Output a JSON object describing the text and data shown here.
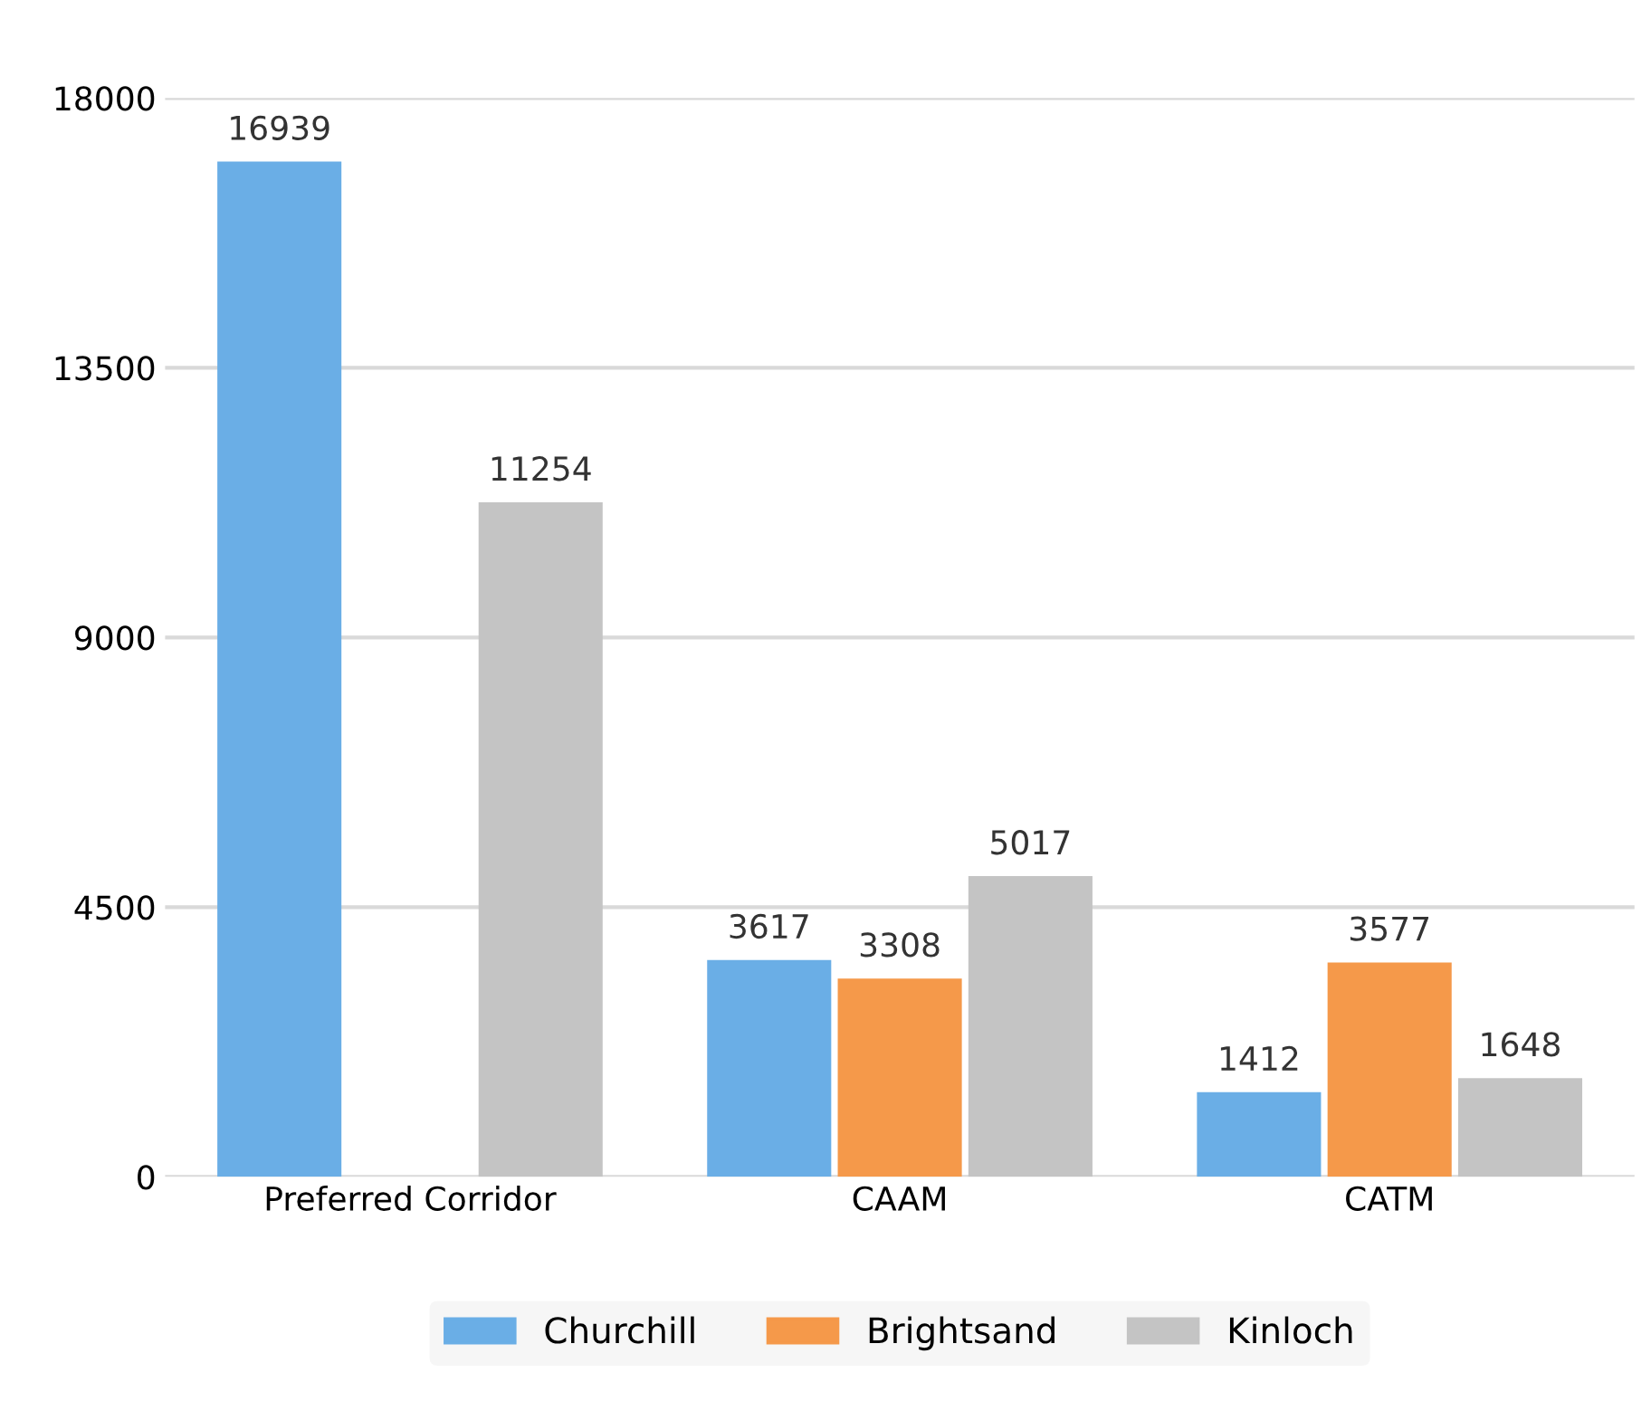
{
  "chart_data": {
    "type": "bar",
    "categories": [
      "Preferred Corridor",
      "CAAM",
      "CATM"
    ],
    "series": [
      {
        "name": "Churchill",
        "color": "#6aaee6",
        "values": [
          16939,
          3617,
          1412
        ]
      },
      {
        "name": "Brightsand",
        "color": "#f5994a",
        "values": [
          null,
          3308,
          3577
        ]
      },
      {
        "name": "Kinloch",
        "color": "#c4c4c4",
        "values": [
          11254,
          5017,
          1648
        ]
      }
    ],
    "ylim": [
      0,
      18000
    ],
    "yticks": [
      0,
      4500,
      9000,
      13500,
      18000
    ],
    "grid": "y",
    "legend": "bottom",
    "data_labels": true
  }
}
